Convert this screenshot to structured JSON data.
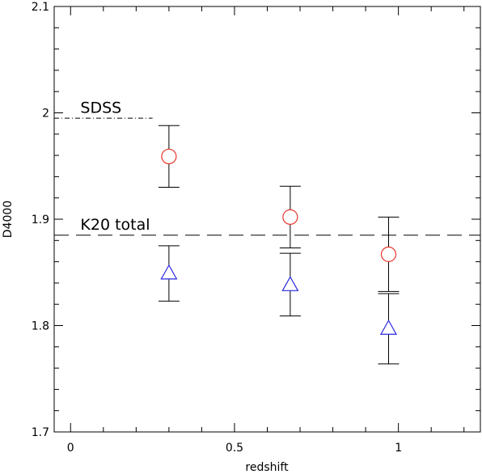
{
  "chart_data": {
    "type": "scatter",
    "xlabel": "redshift",
    "ylabel": "D4000",
    "xlim": [
      -0.05,
      1.25
    ],
    "ylim": [
      1.7,
      2.1
    ],
    "x_ticks": [
      "0",
      "0.5",
      "1"
    ],
    "x_tick_values": [
      0,
      0.5,
      1
    ],
    "y_ticks": [
      "1.7",
      "1.8",
      "1.9",
      "2",
      "2.1"
    ],
    "y_tick_values": [
      1.7,
      1.8,
      1.9,
      2.0,
      2.1
    ],
    "grid": false,
    "series": [
      {
        "marker": "circle",
        "color": "#e8342a",
        "points": [
          {
            "x": 0.3,
            "y": 1.959,
            "ylo": 1.93,
            "yhi": 1.988
          },
          {
            "x": 0.67,
            "y": 1.902,
            "ylo": 1.873,
            "yhi": 1.931
          },
          {
            "x": 0.97,
            "y": 1.867,
            "ylo": 1.832,
            "yhi": 1.902
          }
        ]
      },
      {
        "marker": "triangle",
        "color": "#2a2ae0",
        "points": [
          {
            "x": 0.3,
            "y": 1.849,
            "ylo": 1.823,
            "yhi": 1.875
          },
          {
            "x": 0.67,
            "y": 1.838,
            "ylo": 1.809,
            "yhi": 1.868
          },
          {
            "x": 0.97,
            "y": 1.797,
            "ylo": 1.764,
            "yhi": 1.83
          }
        ]
      }
    ],
    "reference_lines": [
      {
        "label": "SDSS",
        "y": 1.995,
        "x_start": -0.05,
        "x_end": 0.25,
        "style": "dash-dot",
        "label_x": 0.03,
        "label_y": 2.0
      },
      {
        "label": "K20 total",
        "y": 1.885,
        "x_start": -0.05,
        "x_end": 1.25,
        "style": "dashed",
        "label_x": 0.03,
        "label_y": 1.89
      }
    ]
  }
}
